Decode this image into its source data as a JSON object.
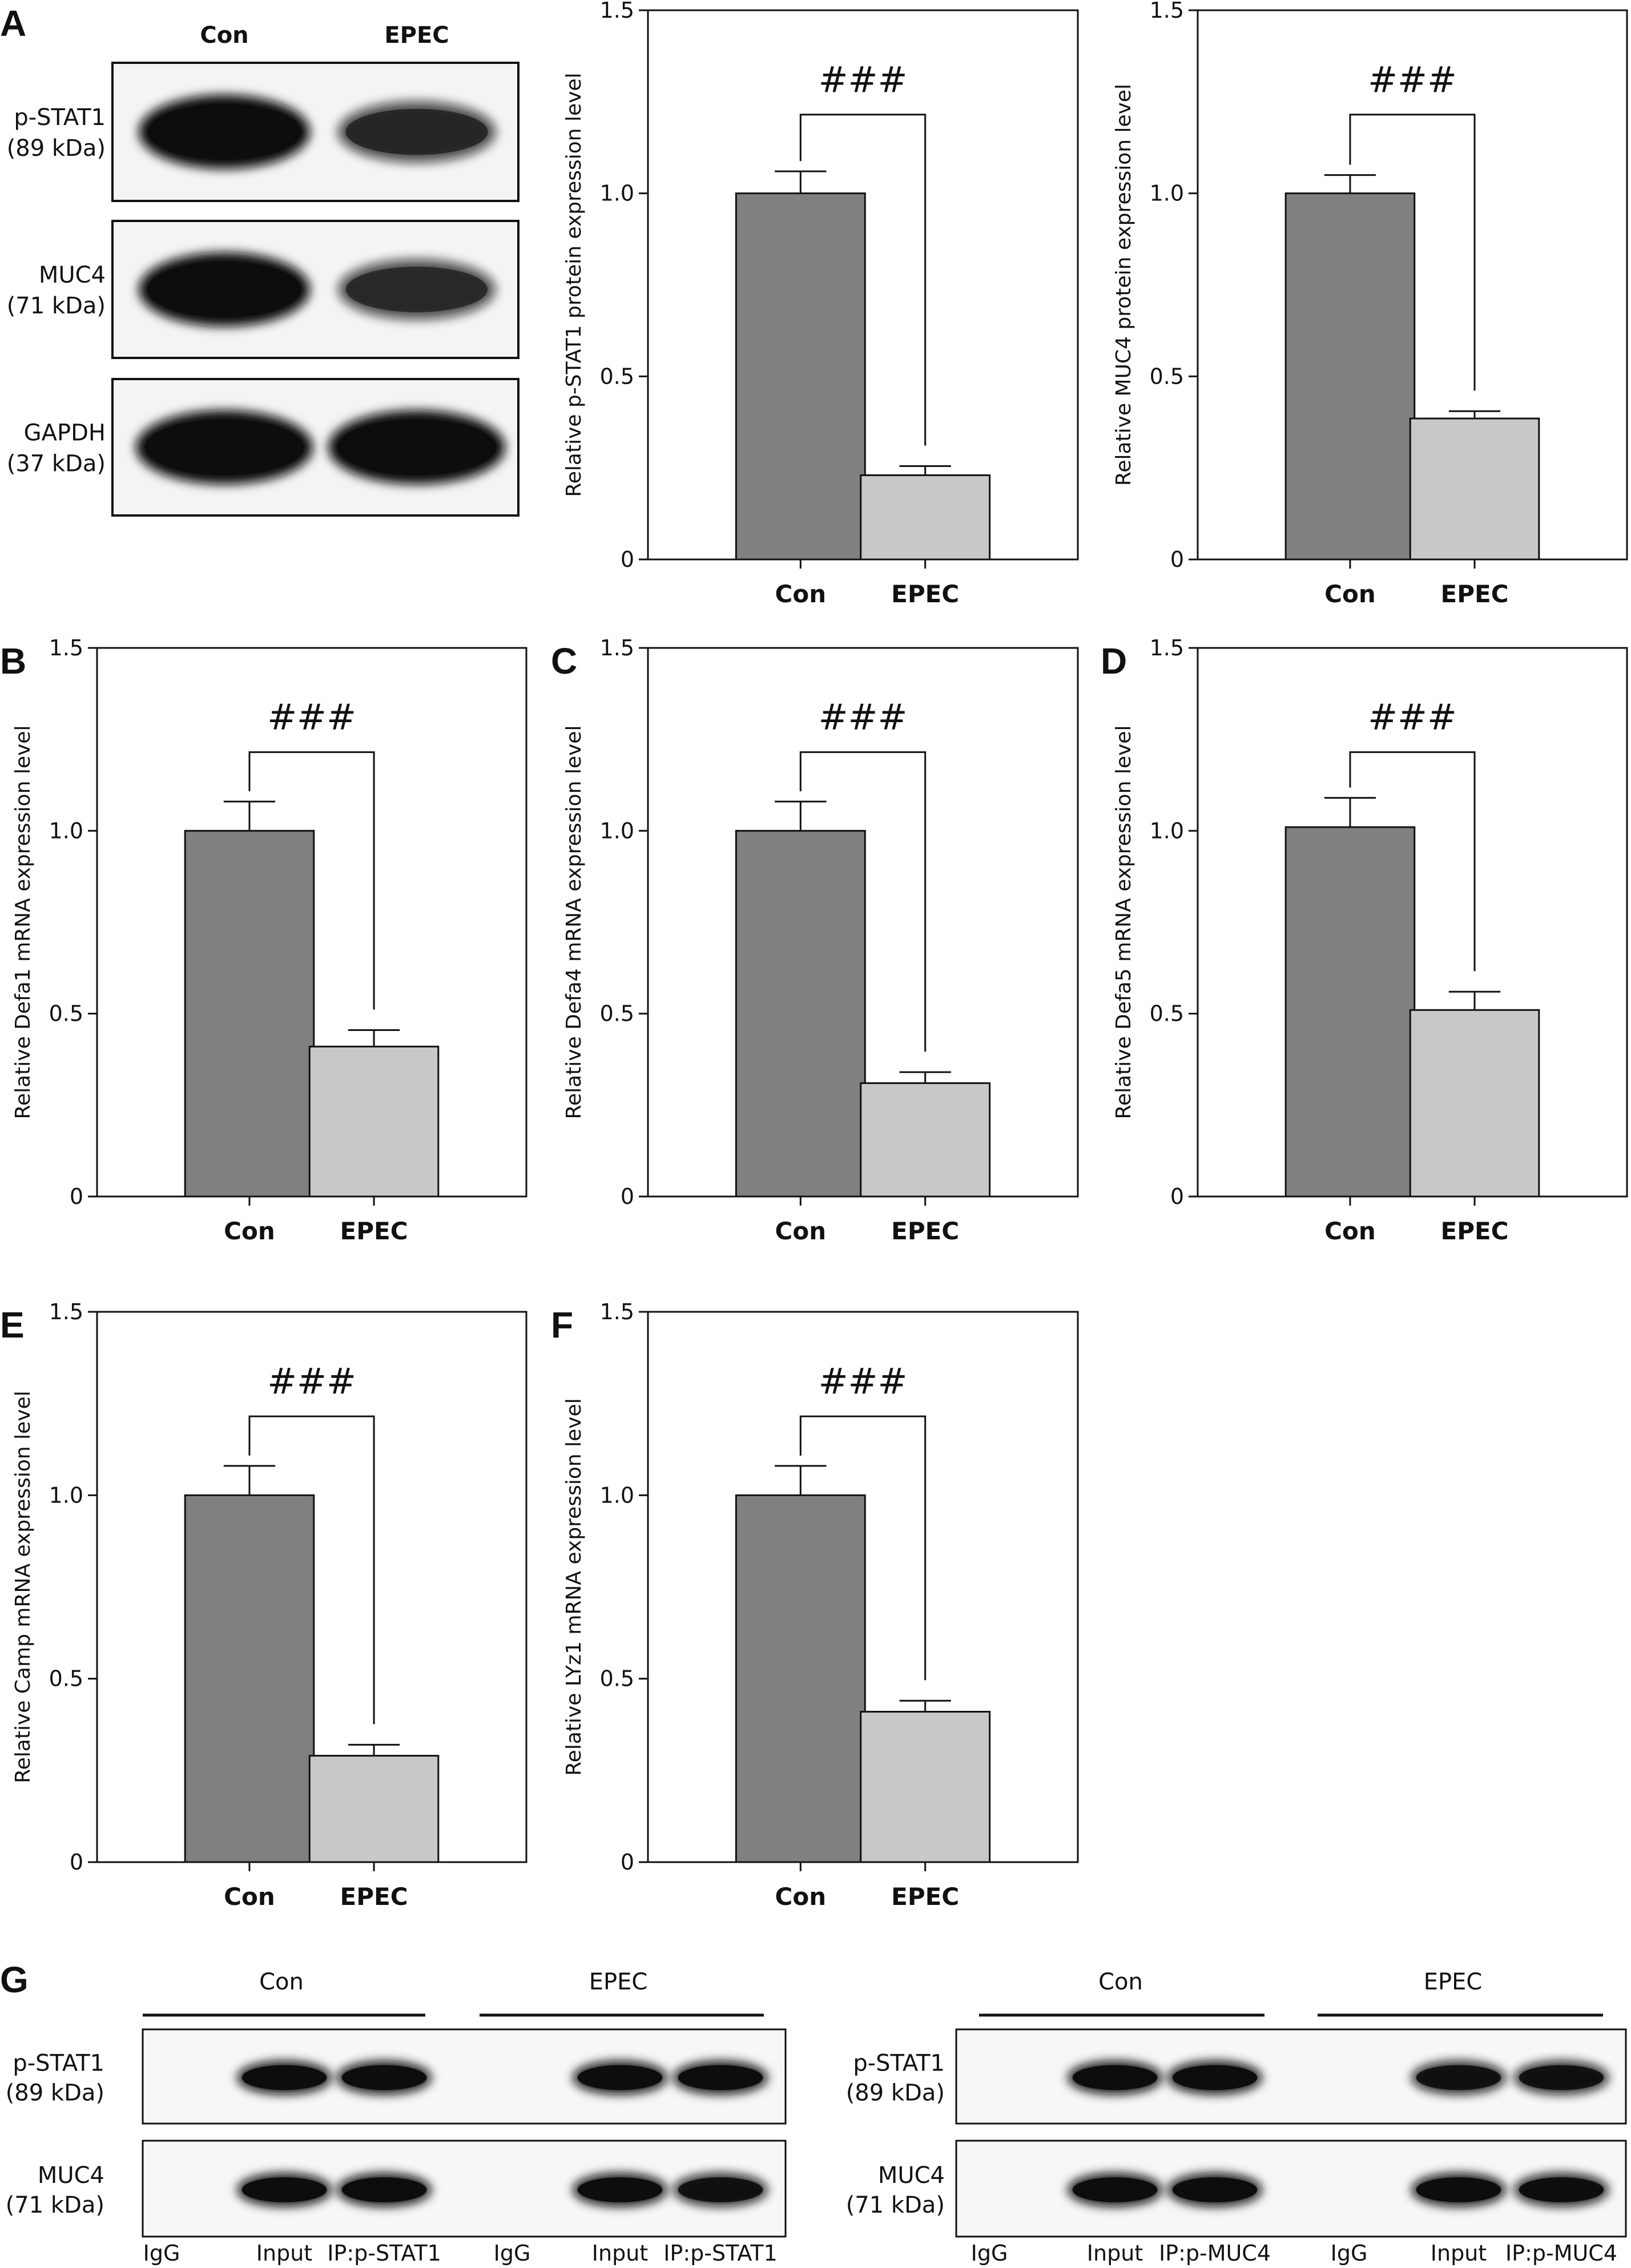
{
  "colors": {
    "con": "#808080",
    "epec": "#c8c8c8",
    "axis": "#111111",
    "band": "#0d0d0d"
  },
  "chart_data": [
    {
      "id": "A1",
      "panel": "",
      "type": "bar",
      "categories": [
        "Con",
        "EPEC"
      ],
      "values": [
        1.0,
        0.23
      ],
      "errors": [
        0.06,
        0.025
      ],
      "ylabel": "Relative p-STAT1 protein expression level",
      "ylim": [
        0,
        1.5
      ],
      "yticks": [
        "0",
        "0.5",
        "1.0",
        "1.5"
      ],
      "significance": "###"
    },
    {
      "id": "A2",
      "panel": "",
      "type": "bar",
      "categories": [
        "Con",
        "EPEC"
      ],
      "values": [
        1.0,
        0.385
      ],
      "errors": [
        0.05,
        0.02
      ],
      "ylabel": "Relative MUC4 protein expression level",
      "ylim": [
        0,
        1.5
      ],
      "yticks": [
        "0",
        "0.5",
        "1.0",
        "1.5"
      ],
      "significance": "###"
    },
    {
      "id": "B",
      "panel": "B",
      "type": "bar",
      "categories": [
        "Con",
        "EPEC"
      ],
      "values": [
        1.0,
        0.41
      ],
      "errors": [
        0.08,
        0.045
      ],
      "ylabel": "Relative Defa1 mRNA expression level",
      "ylim": [
        0,
        1.5
      ],
      "yticks": [
        "0",
        "0.5",
        "1.0",
        "1.5"
      ],
      "significance": "###"
    },
    {
      "id": "C",
      "panel": "C",
      "type": "bar",
      "categories": [
        "Con",
        "EPEC"
      ],
      "values": [
        1.0,
        0.31
      ],
      "errors": [
        0.08,
        0.03
      ],
      "ylabel": "Relative Defa4 mRNA expression level",
      "ylim": [
        0,
        1.5
      ],
      "yticks": [
        "0",
        "0.5",
        "1.0",
        "1.5"
      ],
      "significance": "###"
    },
    {
      "id": "D",
      "panel": "D",
      "type": "bar",
      "categories": [
        "Con",
        "EPEC"
      ],
      "values": [
        1.01,
        0.51
      ],
      "errors": [
        0.08,
        0.05
      ],
      "ylabel": "Relative Defa5 mRNA expression level",
      "ylim": [
        0,
        1.5
      ],
      "yticks": [
        "0",
        "0.5",
        "1.0",
        "1.5"
      ],
      "significance": "###"
    },
    {
      "id": "E",
      "panel": "E",
      "type": "bar",
      "categories": [
        "Con",
        "EPEC"
      ],
      "values": [
        1.0,
        0.29
      ],
      "errors": [
        0.08,
        0.03
      ],
      "ylabel": "Relative Camp mRNA expression level",
      "ylim": [
        0,
        1.5
      ],
      "yticks": [
        "0",
        "0.5",
        "1.0",
        "1.5"
      ],
      "significance": "###"
    },
    {
      "id": "F",
      "panel": "F",
      "type": "bar",
      "categories": [
        "Con",
        "EPEC"
      ],
      "values": [
        1.0,
        0.41
      ],
      "errors": [
        0.08,
        0.03
      ],
      "ylabel": "Relative LYz1 mRNA expression level",
      "ylim": [
        0,
        1.5
      ],
      "yticks": [
        "0",
        "0.5",
        "1.0",
        "1.5"
      ],
      "significance": "###"
    }
  ],
  "panels": {
    "A": {
      "label": "A",
      "groups": [
        "Con",
        "EPEC"
      ],
      "blots": [
        {
          "name": "p-STAT1",
          "size": "(89 kDa)",
          "intensity": [
            1.0,
            0.62
          ]
        },
        {
          "name": "MUC4",
          "size": "(71 kDa)",
          "intensity": [
            1.0,
            0.6
          ]
        },
        {
          "name": "GAPDH",
          "size": "(37 kDa)",
          "intensity": [
            1.0,
            1.0
          ]
        }
      ]
    },
    "G": {
      "label": "G",
      "sets": [
        {
          "groups": [
            "Con",
            "EPEC"
          ],
          "lanes": [
            "IgG",
            "Input",
            "IP:p-STAT1",
            "IgG",
            "Input",
            "IP:p-STAT1"
          ],
          "blots": [
            {
              "name": "p-STAT1",
              "size": "(89 kDa)",
              "intensity": [
                0,
                1,
                1,
                0,
                1,
                1
              ]
            },
            {
              "name": "MUC4",
              "size": "(71 kDa)",
              "intensity": [
                0,
                1,
                1,
                0,
                1,
                0.9
              ]
            }
          ]
        },
        {
          "groups": [
            "Con",
            "EPEC"
          ],
          "lanes": [
            "IgG",
            "Input",
            "IP:p-MUC4",
            "IgG",
            "Input",
            "IP:p-MUC4"
          ],
          "blots": [
            {
              "name": "p-STAT1",
              "size": "(89 kDa)",
              "intensity": [
                0,
                1,
                1,
                0,
                0.9,
                0.9
              ]
            },
            {
              "name": "MUC4",
              "size": "(71 kDa)",
              "intensity": [
                0,
                1,
                1,
                0,
                1,
                0.95
              ]
            }
          ]
        }
      ]
    }
  }
}
